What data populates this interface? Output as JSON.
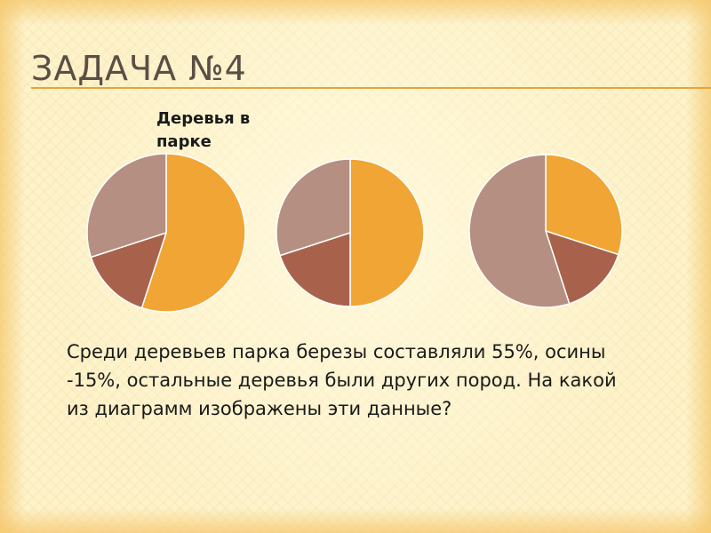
{
  "slide": {
    "title": "ЗАДАЧА №4",
    "task_text": "Среди деревьев парка березы составляли 55%, осины -15%, остальные деревья были других пород. На какой из диаграмм изображены эти данные?"
  },
  "colors": {
    "accent_rule": "#e8a33a",
    "slice_orange": "#f0a534",
    "slice_brown": "#a8624b",
    "slice_taupe": "#b58f82"
  },
  "chart_data": [
    {
      "type": "pie",
      "title": "Деревья в парке",
      "values": [
        55,
        15,
        30
      ],
      "colors": [
        "#f0a534",
        "#a8624b",
        "#b58f82"
      ],
      "start_angle_deg": 0
    },
    {
      "type": "pie",
      "title": "",
      "values": [
        50,
        20,
        30
      ],
      "colors": [
        "#f0a534",
        "#a8624b",
        "#b58f82"
      ],
      "start_angle_deg": 0
    },
    {
      "type": "pie",
      "title": "",
      "values": [
        30,
        15,
        55
      ],
      "colors": [
        "#f0a534",
        "#a8624b",
        "#b58f82"
      ],
      "start_angle_deg": 0
    }
  ]
}
